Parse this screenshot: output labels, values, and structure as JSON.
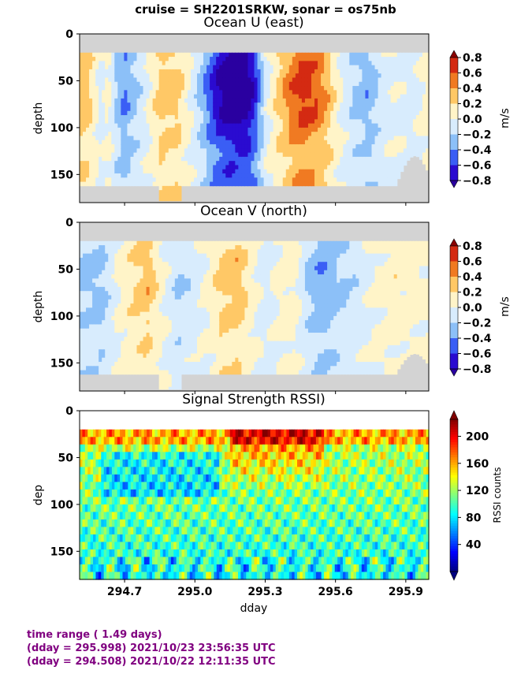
{
  "suptitle": "cruise = SH2201SRKW,  sonar = os75nb",
  "footer": {
    "line1": "time range ( 1.49 days)",
    "line2": "(dday = 295.998) 2021/10/23 23:56:35 UTC",
    "line3": "(dday = 294.508) 2021/10/22 12:11:35 UTC"
  },
  "chart_data": [
    {
      "type": "heatmap",
      "title": "Ocean U (east)",
      "ylabel": "depth",
      "xlim": [
        294.508,
        295.998
      ],
      "ylim": [
        180,
        0
      ],
      "yticks": [
        "0",
        "50",
        "100",
        "150"
      ],
      "colorbar": {
        "label": "m/s",
        "ticks": [
          "0.8",
          "0.6",
          "0.4",
          "0.2",
          "0.0",
          "−0.2",
          "−0.4",
          "−0.6",
          "−0.8"
        ],
        "range": [
          -0.8,
          0.8
        ]
      },
      "data_start_depth": 20,
      "colors": {
        "no_data": "#d3d3d3"
      },
      "profile": [
        {
          "x": 294.508,
          "v": 0.3
        },
        {
          "x": 294.55,
          "v": 0.25
        },
        {
          "x": 294.6,
          "v": -0.1
        },
        {
          "x": 294.63,
          "v": 0.1
        },
        {
          "x": 294.66,
          "v": -0.2
        },
        {
          "x": 294.7,
          "v": -0.4
        },
        {
          "x": 294.75,
          "v": -0.2
        },
        {
          "x": 294.8,
          "v": 0.0
        },
        {
          "x": 294.86,
          "v": 0.3
        },
        {
          "x": 294.93,
          "v": 0.25
        },
        {
          "x": 295.0,
          "v": -0.1
        },
        {
          "x": 295.05,
          "v": -0.4
        },
        {
          "x": 295.1,
          "v": -0.75
        },
        {
          "x": 295.15,
          "v": -0.9
        },
        {
          "x": 295.22,
          "v": -0.9
        },
        {
          "x": 295.26,
          "v": -0.6
        },
        {
          "x": 295.3,
          "v": -0.1
        },
        {
          "x": 295.35,
          "v": 0.2
        },
        {
          "x": 295.4,
          "v": 0.45
        },
        {
          "x": 295.46,
          "v": 0.65
        },
        {
          "x": 295.52,
          "v": 0.55
        },
        {
          "x": 295.57,
          "v": 0.3
        },
        {
          "x": 295.62,
          "v": 0.0
        },
        {
          "x": 295.68,
          "v": -0.2
        },
        {
          "x": 295.74,
          "v": -0.3
        },
        {
          "x": 295.8,
          "v": -0.1
        },
        {
          "x": 295.86,
          "v": 0.0
        },
        {
          "x": 295.92,
          "v": -0.1
        },
        {
          "x": 295.998,
          "v": 0.1
        }
      ]
    },
    {
      "type": "heatmap",
      "title": "Ocean V (north)",
      "ylabel": "depth",
      "xlim": [
        294.508,
        295.998
      ],
      "ylim": [
        180,
        0
      ],
      "yticks": [
        "0",
        "50",
        "100",
        "150"
      ],
      "colorbar": {
        "label": "m/s",
        "ticks": [
          "0.8",
          "0.6",
          "0.4",
          "0.2",
          "0.0",
          "−0.2",
          "−0.4",
          "−0.6",
          "−0.8"
        ],
        "range": [
          -0.8,
          0.8
        ]
      },
      "data_start_depth": 20,
      "colors": {
        "no_data": "#d3d3d3"
      },
      "profile": [
        {
          "x": 294.508,
          "v": -0.2
        },
        {
          "x": 294.6,
          "v": -0.25
        },
        {
          "x": 294.68,
          "v": 0.05
        },
        {
          "x": 294.75,
          "v": 0.2
        },
        {
          "x": 294.8,
          "v": 0.3
        },
        {
          "x": 294.86,
          "v": 0.05
        },
        {
          "x": 294.93,
          "v": -0.2
        },
        {
          "x": 295.0,
          "v": -0.1
        },
        {
          "x": 295.06,
          "v": 0.05
        },
        {
          "x": 295.12,
          "v": 0.25
        },
        {
          "x": 295.18,
          "v": 0.3
        },
        {
          "x": 295.24,
          "v": 0.1
        },
        {
          "x": 295.3,
          "v": -0.1
        },
        {
          "x": 295.36,
          "v": 0.05
        },
        {
          "x": 295.42,
          "v": 0.1
        },
        {
          "x": 295.48,
          "v": -0.2
        },
        {
          "x": 295.55,
          "v": -0.35
        },
        {
          "x": 295.62,
          "v": -0.2
        },
        {
          "x": 295.7,
          "v": -0.1
        },
        {
          "x": 295.78,
          "v": 0.05
        },
        {
          "x": 295.86,
          "v": 0.1
        },
        {
          "x": 295.998,
          "v": 0.05
        }
      ]
    },
    {
      "type": "heatmap",
      "title": "Signal Strength RSSI)",
      "ylabel": "dep",
      "xlabel": "dday",
      "xlim": [
        294.508,
        295.998
      ],
      "ylim": [
        180,
        0
      ],
      "xticks": [
        {
          "value": 294.7,
          "label": "294.7"
        },
        {
          "value": 295.0,
          "label": "295.0"
        },
        {
          "value": 295.3,
          "label": "295.3"
        },
        {
          "value": 295.6,
          "label": "295.6"
        },
        {
          "value": 295.9,
          "label": "295.9"
        }
      ],
      "yticks": [
        "0",
        "50",
        "100",
        "150"
      ],
      "colorbar": {
        "label": "RSSI counts",
        "ticks": [
          "200",
          "160",
          "120",
          "80",
          "40"
        ],
        "range": [
          0,
          225
        ]
      },
      "data_start_depth": 20
    }
  ]
}
